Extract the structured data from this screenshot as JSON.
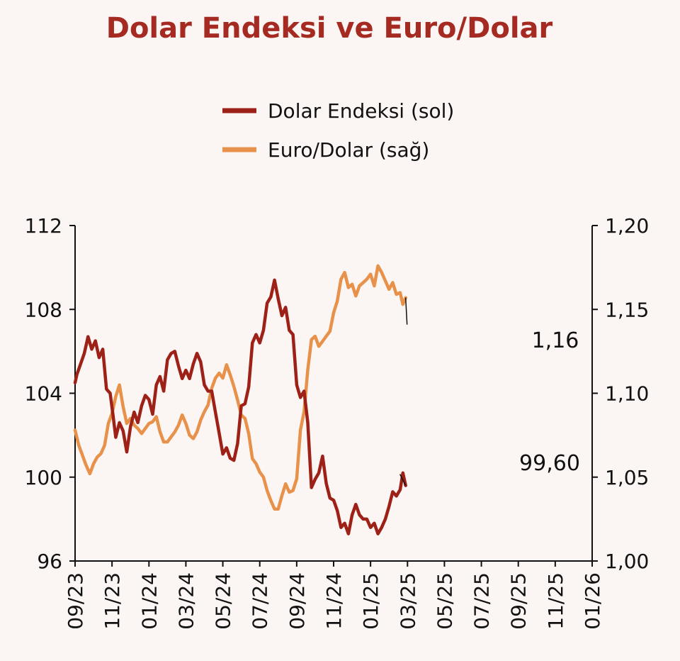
{
  "colors": {
    "background": "#fbf6f4",
    "title": "#a52a22",
    "dolar_endeksi": "#9e2117",
    "euro_dolar": "#e8914a",
    "axis": "#111111"
  },
  "chart_data": {
    "type": "line",
    "title": "Dolar Endeksi ve Euro/Dolar",
    "legend_position": "top-center",
    "x": {
      "range": [
        "2023-09",
        "2026-01"
      ],
      "tick_labels": [
        "09/23",
        "11/23",
        "01/24",
        "03/24",
        "05/24",
        "07/24",
        "09/24",
        "11/24",
        "01/25",
        "03/25",
        "05/25",
        "07/25",
        "09/25",
        "11/25",
        "01/26"
      ]
    },
    "y_left": {
      "min": 96,
      "max": 112,
      "ticks": [
        96,
        100,
        104,
        108,
        112
      ],
      "tick_labels": [
        "96",
        "100",
        "104",
        "108",
        "112"
      ]
    },
    "y_right": {
      "min": 1.0,
      "max": 1.2,
      "ticks": [
        1.0,
        1.05,
        1.1,
        1.15,
        1.2
      ],
      "tick_labels": [
        "1,00",
        "1,05",
        "1,10",
        "1,15",
        "1,20"
      ]
    },
    "series": [
      {
        "name": "Dolar Endeksi (sol)",
        "axis": "left",
        "color": "#9e2117",
        "points": [
          [
            0,
            104.5
          ],
          [
            0.1,
            104.9
          ],
          [
            0.3,
            105.4
          ],
          [
            0.5,
            105.9
          ],
          [
            0.7,
            106.7
          ],
          [
            0.9,
            106.1
          ],
          [
            1.1,
            106.5
          ],
          [
            1.3,
            105.7
          ],
          [
            1.5,
            106.1
          ],
          [
            1.7,
            104.2
          ],
          [
            1.9,
            104.0
          ],
          [
            2.05,
            103.0
          ],
          [
            2.2,
            101.9
          ],
          [
            2.4,
            102.6
          ],
          [
            2.6,
            102.2
          ],
          [
            2.8,
            101.2
          ],
          [
            3.0,
            102.4
          ],
          [
            3.2,
            103.1
          ],
          [
            3.4,
            102.6
          ],
          [
            3.6,
            103.4
          ],
          [
            3.8,
            103.9
          ],
          [
            4.0,
            103.7
          ],
          [
            4.2,
            103.0
          ],
          [
            4.4,
            104.4
          ],
          [
            4.6,
            104.8
          ],
          [
            4.8,
            104.1
          ],
          [
            5.0,
            105.6
          ],
          [
            5.2,
            105.9
          ],
          [
            5.4,
            106.0
          ],
          [
            5.6,
            105.3
          ],
          [
            5.8,
            104.7
          ],
          [
            6.0,
            105.1
          ],
          [
            6.2,
            104.7
          ],
          [
            6.4,
            105.4
          ],
          [
            6.6,
            105.9
          ],
          [
            6.8,
            105.5
          ],
          [
            7.0,
            104.4
          ],
          [
            7.2,
            104.1
          ],
          [
            7.4,
            104.1
          ],
          [
            7.6,
            103.1
          ],
          [
            7.8,
            102.1
          ],
          [
            8.0,
            101.1
          ],
          [
            8.2,
            101.4
          ],
          [
            8.4,
            100.9
          ],
          [
            8.6,
            100.8
          ],
          [
            8.8,
            101.6
          ],
          [
            9.0,
            103.4
          ],
          [
            9.2,
            103.5
          ],
          [
            9.4,
            104.3
          ],
          [
            9.6,
            106.4
          ],
          [
            9.8,
            106.8
          ],
          [
            10.0,
            106.4
          ],
          [
            10.2,
            107.0
          ],
          [
            10.4,
            108.3
          ],
          [
            10.6,
            108.6
          ],
          [
            10.8,
            109.4
          ],
          [
            11.0,
            108.5
          ],
          [
            11.2,
            107.7
          ],
          [
            11.4,
            108.1
          ],
          [
            11.6,
            107.0
          ],
          [
            11.8,
            106.8
          ],
          [
            12.0,
            104.4
          ],
          [
            12.2,
            103.8
          ],
          [
            12.4,
            104.1
          ],
          [
            12.6,
            102.6
          ],
          [
            12.8,
            99.5
          ],
          [
            13.0,
            99.9
          ],
          [
            13.2,
            100.2
          ],
          [
            13.4,
            101.0
          ],
          [
            13.6,
            99.7
          ],
          [
            13.8,
            99.0
          ],
          [
            14.0,
            98.9
          ],
          [
            14.2,
            98.4
          ],
          [
            14.4,
            97.6
          ],
          [
            14.6,
            97.8
          ],
          [
            14.8,
            97.3
          ],
          [
            15.0,
            98.2
          ],
          [
            15.2,
            98.7
          ],
          [
            15.4,
            98.2
          ],
          [
            15.6,
            98.0
          ],
          [
            15.8,
            98.0
          ],
          [
            16.0,
            97.6
          ],
          [
            16.2,
            97.8
          ],
          [
            16.4,
            97.3
          ],
          [
            16.6,
            97.6
          ],
          [
            16.8,
            98.0
          ],
          [
            17.0,
            98.6
          ],
          [
            17.2,
            99.3
          ],
          [
            17.4,
            99.1
          ],
          [
            17.6,
            99.4
          ],
          [
            17.75,
            100.2
          ],
          [
            17.9,
            99.6
          ]
        ]
      },
      {
        "name": "Euro/Dolar (sağ)",
        "axis": "right",
        "color": "#e8914a",
        "points": [
          [
            0,
            1.078
          ],
          [
            0.2,
            1.069
          ],
          [
            0.4,
            1.063
          ],
          [
            0.6,
            1.057
          ],
          [
            0.8,
            1.052
          ],
          [
            1.0,
            1.058
          ],
          [
            1.2,
            1.062
          ],
          [
            1.4,
            1.064
          ],
          [
            1.6,
            1.069
          ],
          [
            1.8,
            1.082
          ],
          [
            2.0,
            1.088
          ],
          [
            2.2,
            1.098
          ],
          [
            2.4,
            1.105
          ],
          [
            2.6,
            1.092
          ],
          [
            2.8,
            1.082
          ],
          [
            3.0,
            1.085
          ],
          [
            3.2,
            1.081
          ],
          [
            3.4,
            1.079
          ],
          [
            3.6,
            1.076
          ],
          [
            3.8,
            1.079
          ],
          [
            4.0,
            1.082
          ],
          [
            4.2,
            1.083
          ],
          [
            4.4,
            1.086
          ],
          [
            4.6,
            1.077
          ],
          [
            4.8,
            1.071
          ],
          [
            5.0,
            1.071
          ],
          [
            5.2,
            1.074
          ],
          [
            5.4,
            1.077
          ],
          [
            5.6,
            1.081
          ],
          [
            5.8,
            1.087
          ],
          [
            6.0,
            1.082
          ],
          [
            6.2,
            1.075
          ],
          [
            6.4,
            1.073
          ],
          [
            6.6,
            1.077
          ],
          [
            6.8,
            1.084
          ],
          [
            7.0,
            1.089
          ],
          [
            7.2,
            1.093
          ],
          [
            7.4,
            1.103
          ],
          [
            7.6,
            1.109
          ],
          [
            7.8,
            1.112
          ],
          [
            8.0,
            1.109
          ],
          [
            8.2,
            1.117
          ],
          [
            8.4,
            1.111
          ],
          [
            8.6,
            1.104
          ],
          [
            8.8,
            1.096
          ],
          [
            9.0,
            1.087
          ],
          [
            9.2,
            1.085
          ],
          [
            9.4,
            1.076
          ],
          [
            9.6,
            1.061
          ],
          [
            9.8,
            1.058
          ],
          [
            10.0,
            1.053
          ],
          [
            10.2,
            1.05
          ],
          [
            10.4,
            1.042
          ],
          [
            10.6,
            1.036
          ],
          [
            10.8,
            1.031
          ],
          [
            11.0,
            1.031
          ],
          [
            11.2,
            1.039
          ],
          [
            11.4,
            1.046
          ],
          [
            11.6,
            1.041
          ],
          [
            11.8,
            1.042
          ],
          [
            12.0,
            1.049
          ],
          [
            12.2,
            1.078
          ],
          [
            12.4,
            1.089
          ],
          [
            12.6,
            1.114
          ],
          [
            12.8,
            1.132
          ],
          [
            13.0,
            1.134
          ],
          [
            13.2,
            1.128
          ],
          [
            13.4,
            1.131
          ],
          [
            13.6,
            1.134
          ],
          [
            13.8,
            1.137
          ],
          [
            14.0,
            1.148
          ],
          [
            14.2,
            1.155
          ],
          [
            14.4,
            1.168
          ],
          [
            14.6,
            1.172
          ],
          [
            14.8,
            1.163
          ],
          [
            15.0,
            1.165
          ],
          [
            15.2,
            1.158
          ],
          [
            15.4,
            1.164
          ],
          [
            15.6,
            1.166
          ],
          [
            15.8,
            1.168
          ],
          [
            16.0,
            1.171
          ],
          [
            16.2,
            1.164
          ],
          [
            16.4,
            1.176
          ],
          [
            16.6,
            1.172
          ],
          [
            16.8,
            1.167
          ],
          [
            17.0,
            1.162
          ],
          [
            17.2,
            1.166
          ],
          [
            17.4,
            1.159
          ],
          [
            17.6,
            1.16
          ],
          [
            17.75,
            1.153
          ],
          [
            17.9,
            1.157
          ]
        ]
      }
    ],
    "annotations": [
      {
        "series": "Euro/Dolar (sağ)",
        "label": "1,16",
        "value": 1.16
      },
      {
        "series": "Dolar Endeksi (sol)",
        "label": "99,60",
        "value": 99.6
      }
    ]
  }
}
